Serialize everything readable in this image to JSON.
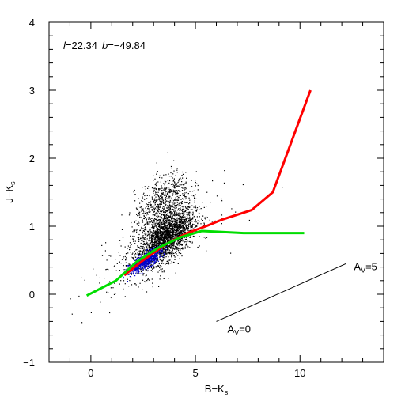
{
  "chart_data": {
    "type": "scatter",
    "title": "",
    "xlabel": "B−K",
    "xlabel_sub": "s",
    "ylabel": "J−K",
    "ylabel_sub": "s",
    "xlim": [
      -2,
      14
    ],
    "ylim": [
      -1,
      4
    ],
    "x_ticks": [
      0,
      5,
      10
    ],
    "y_ticks": [
      -1,
      0,
      1,
      2,
      3,
      4
    ],
    "x_tick_labels": [
      "0",
      "5",
      "10"
    ],
    "y_tick_labels": [
      "−1",
      "0",
      "1",
      "2",
      "3",
      "4"
    ],
    "grid": false,
    "annotation_coords": {
      "l_label": "l",
      "l_value": "=22.34",
      "b_label": "b",
      "b_value": "=−49.84"
    },
    "series": [
      {
        "color": "#ff0000",
        "x": [
          1.6,
          2.5,
          3.5,
          4.6,
          5.5,
          6.3,
          7.7,
          8.7,
          10.5
        ],
        "y": [
          0.28,
          0.5,
          0.72,
          0.9,
          1.0,
          1.1,
          1.24,
          1.5,
          3.0
        ]
      },
      {
        "color": "#00dd00",
        "x": [
          -0.2,
          1.2,
          2.2,
          3.2,
          4.3,
          5.3,
          6.0,
          7.3,
          10.2
        ],
        "y": [
          -0.02,
          0.2,
          0.48,
          0.68,
          0.84,
          0.93,
          0.92,
          0.9,
          0.9
        ]
      }
    ],
    "reddening_vector": {
      "x": [
        6.0,
        12.2
      ],
      "y": [
        -0.4,
        0.45
      ],
      "start_label": "A",
      "start_sub": "V",
      "start_value": "=0",
      "end_label": "A",
      "end_sub": "V",
      "end_value": "=5"
    },
    "scatter_clouds": [
      {
        "color": "#000000",
        "center": [
          3.6,
          0.85
        ],
        "spread": [
          1.2,
          0.3
        ],
        "count": 2200
      },
      {
        "color": "#000000",
        "center": [
          3.4,
          1.35
        ],
        "spread": [
          1.2,
          0.35
        ],
        "count": 700
      },
      {
        "color": "#000000",
        "center": [
          3.0,
          0.7
        ],
        "spread": [
          2.6,
          0.45
        ],
        "count": 400
      },
      {
        "color": "#0000cc",
        "center": [
          2.6,
          0.5
        ],
        "spread": [
          0.7,
          0.1
        ],
        "count": 700
      }
    ],
    "colors": {
      "red_track": "#ff0000",
      "green_track": "#00dd00",
      "dense_points": "#0000cc",
      "points": "#000000"
    }
  }
}
